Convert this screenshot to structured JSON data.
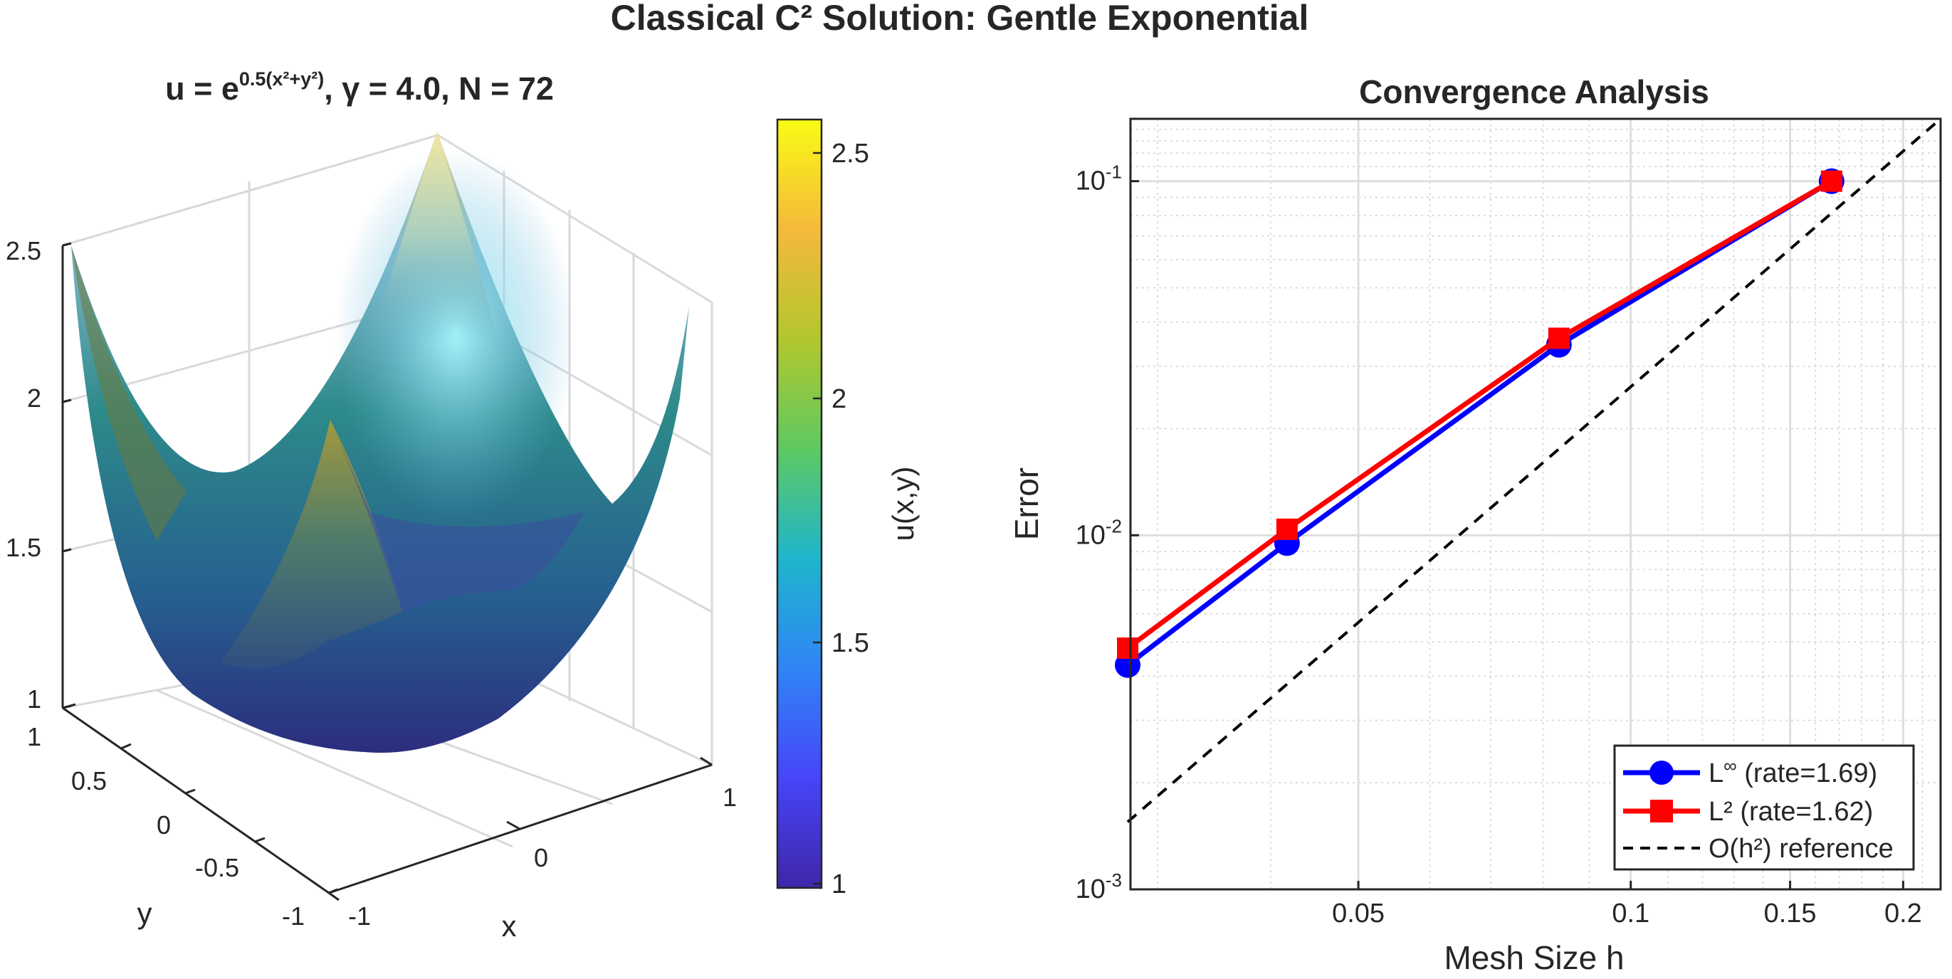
{
  "figure": {
    "suptitle": "Classical C² Solution: Gentle Exponential"
  },
  "surface_panel": {
    "title_prefix": "u  =  e",
    "title_exponent": "0.5(x²+y²)",
    "title_suffix": ",  γ  =  4.0,  N  =  72",
    "z_ticks": [
      "1",
      "1.5",
      "2",
      "2.5"
    ],
    "x_ticks": [
      "-1",
      "0",
      "1"
    ],
    "y_ticks": [
      "-1",
      "-0.5",
      "0",
      "0.5",
      "1"
    ],
    "x_label": "x",
    "y_label": "y",
    "colorbar": {
      "label": "u(x,y)",
      "ticks": [
        "1",
        "1.5",
        "2",
        "2.5"
      ],
      "range": [
        1,
        2.59
      ],
      "colors": [
        "#3e26a8",
        "#4745f9",
        "#2f85f5",
        "#1fb5cc",
        "#5ec962",
        "#b2c72d",
        "#f5b93b",
        "#f9fb15"
      ]
    }
  },
  "chart_data": {
    "type": "line",
    "title": "Convergence Analysis",
    "xlabel": "Mesh Size h",
    "ylabel": "Error",
    "xscale": "log",
    "yscale": "log",
    "xlim": [
      0.028,
      0.22
    ],
    "ylim": [
      0.001,
      0.15
    ],
    "x_ticks": [
      0.05,
      0.1,
      0.15,
      0.2
    ],
    "x_tick_labels": [
      "0.05",
      "0.1",
      "0.15",
      "0.2"
    ],
    "y_ticks": [
      0.001,
      0.01,
      0.1
    ],
    "y_tick_labels": [
      {
        "base": "10",
        "exp": "-3"
      },
      {
        "base": "10",
        "exp": "-2"
      },
      {
        "base": "10",
        "exp": "-1"
      }
    ],
    "grid": true,
    "legend_position": "bottom-right",
    "series": [
      {
        "name": "L∞ (rate=1.69)",
        "label_main": "L",
        "label_sup": "∞",
        "label_rest": "  (rate=1.69)",
        "color": "#0000ff",
        "marker": "circle",
        "x": [
          0.0278,
          0.0417,
          0.0833,
          0.1667
        ],
        "y": [
          0.0043,
          0.0095,
          0.0345,
          0.1
        ]
      },
      {
        "name": "L² (rate=1.62)",
        "label_main": "L² (rate=1.62)",
        "color": "#ff0000",
        "marker": "square",
        "x": [
          0.0278,
          0.0417,
          0.0833,
          0.1667
        ],
        "y": [
          0.0048,
          0.0104,
          0.036,
          0.1
        ]
      },
      {
        "name": "O(h²) reference",
        "label_main": "O(h²) reference",
        "color": "#000000",
        "marker": "none",
        "dashed": true,
        "x": [
          0.0278,
          0.22
        ],
        "y": [
          0.00155,
          0.15
        ]
      }
    ]
  }
}
